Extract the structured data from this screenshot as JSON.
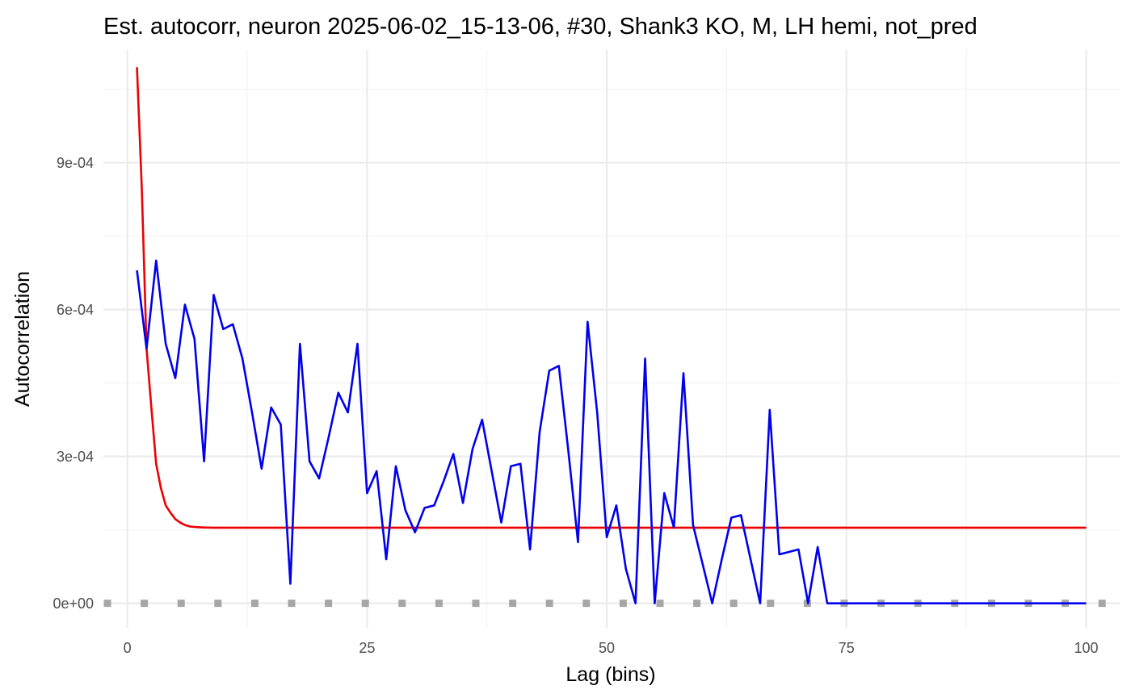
{
  "chart_data": {
    "type": "line",
    "title": "Est. autocorr, neuron 2025-06-02_15-13-06, #30, Shank3 KO, M, LH hemi, not_pred",
    "xlabel": "Lag (bins)",
    "ylabel": "Autocorrelation",
    "xlim": [
      -2.5,
      103.5
    ],
    "ylim": [
      -5e-05,
      0.00113
    ],
    "x_ticks": [
      0,
      25,
      50,
      75,
      100
    ],
    "x_tick_labels": [
      "0",
      "25",
      "50",
      "75",
      "100"
    ],
    "y_ticks": [
      0,
      0.0003,
      0.0006,
      0.0009
    ],
    "y_tick_labels": [
      "0e+00",
      "3e-04",
      "6e-04",
      "9e-04"
    ],
    "grid": true,
    "legend": "none",
    "series": [
      {
        "color": "#0000ee",
        "style": "line",
        "x": [
          1,
          2,
          3,
          4,
          5,
          6,
          7,
          8,
          9,
          10,
          11,
          12,
          13,
          14,
          15,
          16,
          17,
          18,
          19,
          20,
          21,
          22,
          23,
          24,
          25,
          26,
          27,
          28,
          29,
          30,
          31,
          32,
          33,
          34,
          35,
          36,
          37,
          38,
          39,
          40,
          41,
          42,
          43,
          44,
          45,
          46,
          47,
          48,
          49,
          50,
          51,
          52,
          53,
          54,
          55,
          56,
          57,
          58,
          59,
          60,
          61,
          62,
          63,
          64,
          65,
          66,
          67,
          68,
          69,
          70,
          71,
          72,
          73,
          74,
          75,
          76,
          77,
          78,
          79,
          80,
          81,
          82,
          83,
          84,
          85,
          86,
          87,
          88,
          89,
          90,
          91,
          92,
          93,
          94,
          95,
          96,
          97,
          98,
          99,
          100
        ],
        "y": [
          0.00068,
          0.00052,
          0.0007,
          0.00053,
          0.00046,
          0.00061,
          0.00054,
          0.00029,
          0.00063,
          0.00056,
          0.00057,
          0.0005,
          0.00039,
          0.000275,
          0.0004,
          0.000365,
          4e-05,
          0.00053,
          0.00029,
          0.000255,
          0.00034,
          0.00043,
          0.00039,
          0.00053,
          0.000225,
          0.00027,
          9e-05,
          0.00028,
          0.00019,
          0.000145,
          0.000195,
          0.0002,
          0.00025,
          0.000305,
          0.000205,
          0.000315,
          0.000375,
          0.00027,
          0.000165,
          0.00028,
          0.000285,
          0.00011,
          0.00035,
          0.000475,
          0.000485,
          0.00031,
          0.000125,
          0.000575,
          0.00039,
          0.000135,
          0.0002,
          7e-05,
          0,
          0.0005,
          0,
          0.000225,
          0.000155,
          0.00047,
          0.00016,
          8e-05,
          0,
          9e-05,
          0.000175,
          0.00018,
          9e-05,
          0,
          0.000395,
          0.0001,
          0.000105,
          0.00011,
          0,
          0.000115,
          0,
          0,
          0,
          0,
          0,
          0,
          0,
          0,
          0,
          0,
          0,
          0,
          0,
          0,
          0,
          0,
          0,
          0,
          0,
          0,
          0,
          0,
          0,
          0,
          0,
          0,
          0,
          0
        ]
      },
      {
        "color": "#ee0000",
        "style": "line",
        "x": [
          1,
          1.5,
          2,
          2.5,
          3,
          3.5,
          4,
          4.5,
          5,
          5.5,
          6,
          6.5,
          7,
          7.5,
          8,
          8.5,
          9,
          9.5,
          10,
          11,
          12,
          13,
          14,
          15,
          20,
          30,
          40,
          50,
          60,
          70,
          80,
          90,
          100
        ],
        "y": [
          0.001095,
          0.00085,
          0.00052,
          0.0004,
          0.000285,
          0.000235,
          0.0002,
          0.000185,
          0.000172,
          0.000165,
          0.00016,
          0.000157,
          0.000156,
          0.0001553,
          0.0001548,
          0.0001546,
          0.0001545,
          0.0001545,
          0.0001545,
          0.0001545,
          0.0001545,
          0.0001545,
          0.0001545,
          0.0001545,
          0.0001545,
          0.0001545,
          0.0001545,
          0.0001545,
          0.0001545,
          0.0001545,
          0.0001545,
          0.0001545,
          0.0001545
        ]
      },
      {
        "color": "#a6a6a6",
        "style": "dotted",
        "x": [
          -2.5,
          103.5
        ],
        "y": [
          0,
          0
        ]
      }
    ]
  }
}
